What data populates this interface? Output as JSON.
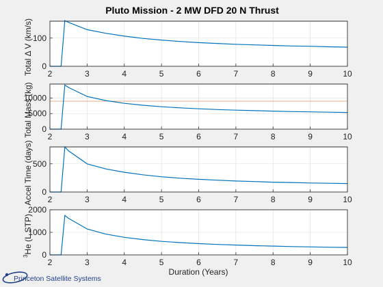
{
  "figure": {
    "title": "Pluto Mission - 2 MW DFD 20 N Thrust",
    "xlabel": "Duration (Years)"
  },
  "logo": {
    "text": "Princeton Satellite Systems"
  },
  "chart_data": [
    {
      "type": "line",
      "ylabel": "Total Δ V (km/s)",
      "x": [
        2,
        2.3,
        2.4,
        2.5,
        3,
        3.5,
        4,
        4.5,
        5,
        5.5,
        6,
        6.5,
        7,
        7.5,
        8,
        8.5,
        9,
        9.5,
        10
      ],
      "series": [
        {
          "values": [
            0,
            0,
            162,
            156,
            130,
            117,
            107,
            99,
            93,
            88,
            84,
            81,
            78,
            76,
            74,
            72,
            71,
            69,
            68
          ]
        }
      ],
      "xlim": [
        2,
        10
      ],
      "ylim": [
        0,
        160
      ],
      "xticks": [
        "2",
        "3",
        "4",
        "5",
        "6",
        "7",
        "8",
        "9",
        "10"
      ],
      "yticks": [
        {
          "value": 0,
          "label": "0"
        },
        {
          "value": 100,
          "label": "100"
        }
      ],
      "grid": true
    },
    {
      "type": "line",
      "ylabel": "Total Mass (kg)",
      "x": [
        2,
        2.3,
        2.4,
        2.5,
        3,
        3.5,
        4,
        4.5,
        5,
        5.5,
        6,
        6.5,
        7,
        7.5,
        8,
        8.5,
        9,
        9.5,
        10
      ],
      "series": [
        {
          "values": [
            0,
            0,
            14200,
            13400,
            10500,
            9200,
            8300,
            7700,
            7200,
            6850,
            6550,
            6300,
            6100,
            5950,
            5800,
            5650,
            5550,
            5450,
            5350
          ]
        }
      ],
      "reference_lines": [
        {
          "y": 9000,
          "color": "#e7a178"
        }
      ],
      "xlim": [
        2,
        10
      ],
      "ylim": [
        0,
        14500
      ],
      "xticks": [
        "2",
        "3",
        "4",
        "5",
        "6",
        "7",
        "8",
        "9",
        "10"
      ],
      "yticks": [
        {
          "value": 0,
          "label": "0"
        },
        {
          "value": 5000,
          "label": "5000"
        },
        {
          "value": 10000,
          "label": "10000"
        }
      ],
      "grid": true
    },
    {
      "type": "line",
      "ylabel": "Accel Time (days)",
      "x": [
        2,
        2.3,
        2.4,
        2.5,
        3,
        3.5,
        4,
        4.5,
        5,
        5.5,
        6,
        6.5,
        7,
        7.5,
        8,
        8.5,
        9,
        9.5,
        10
      ],
      "series": [
        {
          "values": [
            0,
            0,
            800,
            730,
            500,
            410,
            350,
            305,
            270,
            245,
            225,
            210,
            195,
            185,
            175,
            168,
            160,
            155,
            150
          ]
        }
      ],
      "xlim": [
        2,
        10
      ],
      "ylim": [
        0,
        800
      ],
      "xticks": [
        "2",
        "3",
        "4",
        "5",
        "6",
        "7",
        "8",
        "9",
        "10"
      ],
      "yticks": [
        {
          "value": 0,
          "label": "0"
        },
        {
          "value": 500,
          "label": "500"
        }
      ],
      "grid": true
    },
    {
      "type": "line",
      "ylabel_superscript": "3",
      "ylabel": "He (L STP)",
      "x": [
        2,
        2.3,
        2.4,
        2.5,
        3,
        3.5,
        4,
        4.5,
        5,
        5.5,
        6,
        6.5,
        7,
        7.5,
        8,
        8.5,
        9,
        9.5,
        10
      ],
      "series": [
        {
          "values": [
            0,
            0,
            1750,
            1620,
            1150,
            920,
            780,
            680,
            600,
            545,
            500,
            465,
            435,
            410,
            390,
            370,
            355,
            340,
            330
          ]
        }
      ],
      "xlim": [
        2,
        10
      ],
      "ylim": [
        0,
        2000
      ],
      "xticks": [
        "2",
        "3",
        "4",
        "5",
        "6",
        "7",
        "8",
        "9",
        "10"
      ],
      "yticks": [
        {
          "value": 0,
          "label": "0"
        },
        {
          "value": 1000,
          "label": "1000"
        },
        {
          "value": 2000,
          "label": "2000"
        }
      ],
      "grid": true
    }
  ]
}
